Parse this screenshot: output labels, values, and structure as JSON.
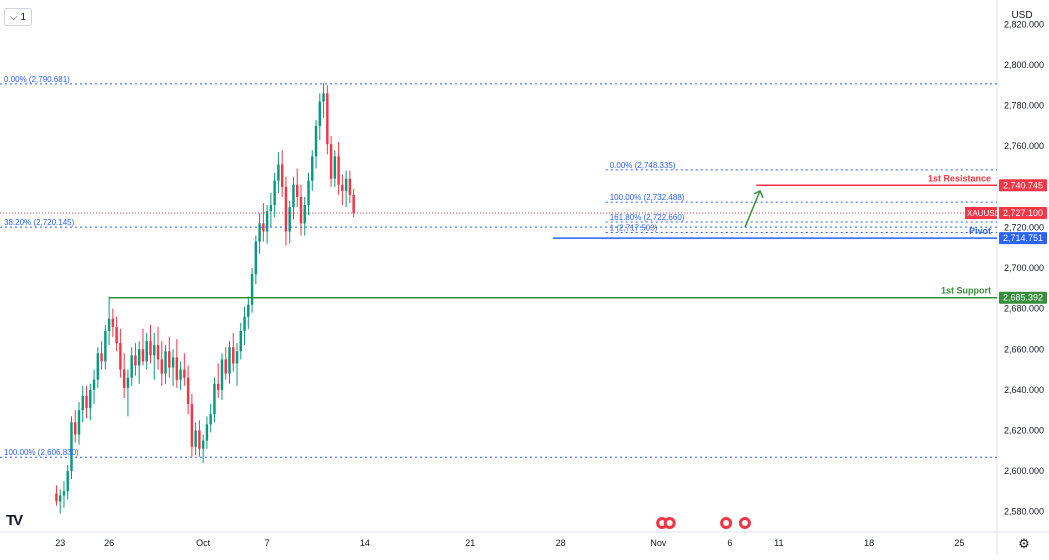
{
  "ui": {
    "menu_label": "1",
    "menu_icon": "chevron-down-icon",
    "currency_label": "USD",
    "settings_icon": "gear-icon",
    "logo_text": "TV"
  },
  "chart_data": {
    "type": "candlestick",
    "symbol": "XAUUSD",
    "last_price": 2727.1,
    "colors": {
      "up": "#089981",
      "down": "#f23645",
      "resistance": "#f23645",
      "support": "#388e3c",
      "pivot": "#2962ff",
      "fib": "#2962ff",
      "last": "#f23645"
    },
    "ylim": [
      2570,
      2832
    ],
    "y_ticks": [
      2580,
      2600,
      2620,
      2640,
      2660,
      2680,
      2700,
      2720,
      2740,
      2760,
      2780,
      2800,
      2820
    ],
    "y_tick_labels": [
      "2,580.000",
      "2,600.000",
      "2,620.000",
      "2,640.000",
      "2,660.000",
      "2,680.000",
      "2,700.000",
      "2,720.000",
      "2,740.000",
      "2,760.000",
      "2,780.000",
      "2,800.000",
      "2,820.000"
    ],
    "x_ticks": [
      {
        "label": "23",
        "bar": 1
      },
      {
        "label": "26",
        "bar": 14
      },
      {
        "label": "Oct",
        "bar": 39
      },
      {
        "label": "7",
        "bar": 56
      },
      {
        "label": "14",
        "bar": 82
      },
      {
        "label": "21",
        "bar": 110
      },
      {
        "label": "28",
        "bar": 134
      },
      {
        "label": "Nov",
        "bar": 160
      },
      {
        "label": "6",
        "bar": 179
      },
      {
        "label": "11",
        "bar": 192
      },
      {
        "label": "18",
        "bar": 216
      },
      {
        "label": "25",
        "bar": 240
      }
    ],
    "x_bar_range": [
      -15,
      250
    ],
    "candles": [
      [
        2589,
        2593,
        2583,
        2585
      ],
      [
        2585,
        2591,
        2579,
        2588
      ],
      [
        2588,
        2595,
        2582,
        2590
      ],
      [
        2590,
        2603,
        2586,
        2600
      ],
      [
        2600,
        2627,
        2596,
        2624
      ],
      [
        2624,
        2630,
        2614,
        2618
      ],
      [
        2618,
        2634,
        2613,
        2630
      ],
      [
        2630,
        2642,
        2624,
        2637
      ],
      [
        2637,
        2642,
        2626,
        2631
      ],
      [
        2631,
        2643,
        2625,
        2640
      ],
      [
        2640,
        2650,
        2633,
        2645
      ],
      [
        2645,
        2661,
        2641,
        2658
      ],
      [
        2658,
        2664,
        2650,
        2654
      ],
      [
        2654,
        2672,
        2650,
        2669
      ],
      [
        2669,
        2686,
        2662,
        2675
      ],
      [
        2675,
        2680,
        2666,
        2671
      ],
      [
        2671,
        2676,
        2659,
        2663
      ],
      [
        2663,
        2670,
        2646,
        2650
      ],
      [
        2650,
        2658,
        2636,
        2641
      ],
      [
        2641,
        2650,
        2627,
        2646
      ],
      [
        2646,
        2661,
        2642,
        2657
      ],
      [
        2657,
        2663,
        2647,
        2652
      ],
      [
        2652,
        2664,
        2643,
        2660
      ],
      [
        2660,
        2670,
        2652,
        2654
      ],
      [
        2654,
        2668,
        2650,
        2664
      ],
      [
        2664,
        2672,
        2653,
        2657
      ],
      [
        2657,
        2668,
        2645,
        2662
      ],
      [
        2662,
        2671,
        2650,
        2655
      ],
      [
        2655,
        2664,
        2642,
        2648
      ],
      [
        2648,
        2662,
        2643,
        2659
      ],
      [
        2659,
        2666,
        2646,
        2651
      ],
      [
        2651,
        2660,
        2642,
        2656
      ],
      [
        2656,
        2665,
        2641,
        2645
      ],
      [
        2645,
        2654,
        2640,
        2650
      ],
      [
        2650,
        2658,
        2642,
        2646
      ],
      [
        2646,
        2652,
        2628,
        2633
      ],
      [
        2633,
        2638,
        2607,
        2612
      ],
      [
        2612,
        2624,
        2608,
        2620
      ],
      [
        2620,
        2625,
        2607,
        2611
      ],
      [
        2611,
        2618,
        2604,
        2615
      ],
      [
        2615,
        2627,
        2611,
        2623
      ],
      [
        2623,
        2633,
        2619,
        2628
      ],
      [
        2628,
        2646,
        2624,
        2643
      ],
      [
        2643,
        2653,
        2636,
        2640
      ],
      [
        2640,
        2658,
        2635,
        2655
      ],
      [
        2655,
        2661,
        2645,
        2648
      ],
      [
        2648,
        2664,
        2643,
        2661
      ],
      [
        2661,
        2668,
        2649,
        2653
      ],
      [
        2653,
        2663,
        2642,
        2659
      ],
      [
        2659,
        2673,
        2655,
        2669
      ],
      [
        2669,
        2681,
        2662,
        2676
      ],
      [
        2676,
        2686,
        2670,
        2682
      ],
      [
        2682,
        2700,
        2678,
        2697
      ],
      [
        2697,
        2716,
        2692,
        2713
      ],
      [
        2713,
        2727,
        2707,
        2722
      ],
      [
        2722,
        2732,
        2713,
        2718
      ],
      [
        2718,
        2731,
        2712,
        2728
      ],
      [
        2728,
        2737,
        2720,
        2731
      ],
      [
        2731,
        2747,
        2725,
        2743
      ],
      [
        2743,
        2757,
        2737,
        2751
      ],
      [
        2751,
        2758,
        2735,
        2740
      ],
      [
        2740,
        2745,
        2711,
        2718
      ],
      [
        2718,
        2733,
        2712,
        2730
      ],
      [
        2730,
        2745,
        2724,
        2741
      ],
      [
        2741,
        2749,
        2730,
        2735
      ],
      [
        2735,
        2741,
        2716,
        2722
      ],
      [
        2722,
        2735,
        2716,
        2731
      ],
      [
        2731,
        2747,
        2726,
        2743
      ],
      [
        2743,
        2758,
        2738,
        2755
      ],
      [
        2755,
        2773,
        2749,
        2770
      ],
      [
        2770,
        2786,
        2763,
        2782
      ],
      [
        2782,
        2791,
        2774,
        2786
      ],
      [
        2786,
        2790,
        2756,
        2761
      ],
      [
        2761,
        2765,
        2740,
        2744
      ],
      [
        2744,
        2758,
        2740,
        2755
      ],
      [
        2755,
        2762,
        2736,
        2741
      ],
      [
        2741,
        2746,
        2731,
        2738
      ],
      [
        2738,
        2748,
        2730,
        2744
      ],
      [
        2744,
        2748,
        2732,
        2736
      ],
      [
        2736,
        2739,
        2725,
        2727
      ]
    ],
    "levels": [
      {
        "name": "1st Resistance",
        "price": 2740.745,
        "label": "2,740.745",
        "color": "#f23645",
        "bar_start": 186,
        "kind": "resistance"
      },
      {
        "name": "XAUUSD",
        "price": 2727.1,
        "label": "2,727.100",
        "color": "#f23645",
        "bar_start": -15,
        "kind": "last"
      },
      {
        "name": "Pivot",
        "price": 2714.751,
        "label": "2,714.751",
        "color": "#2962ff",
        "bar_start": 132,
        "kind": "pivot"
      },
      {
        "name": "1st Support",
        "price": 2685.392,
        "label": "2,685.392",
        "color": "#388e3c",
        "bar_start": 14,
        "kind": "support"
      }
    ],
    "fib_lines": [
      {
        "text": "0.00% (2,790.681)",
        "price": 2790.681,
        "bar_start": -15
      },
      {
        "text": "38.20% (2,720.145)",
        "price": 2720.145,
        "bar_start": -15
      },
      {
        "text": "100.00% (2,606.830)",
        "price": 2606.83,
        "bar_start": -15
      },
      {
        "text": "0.00% (2,748.335)",
        "price": 2748.335,
        "bar_start": 146
      },
      {
        "text": "100.00% (2,732.488)",
        "price": 2732.488,
        "bar_start": 146
      },
      {
        "text": "161.80% (2,722.660)",
        "price": 2722.66,
        "bar_start": 146
      },
      {
        "text": "1 (2,717.503)",
        "price": 2717.503,
        "bar_start": 146
      }
    ],
    "events_icon": "us-flag-event-icon",
    "event_bars": [
      161,
      163,
      178,
      183
    ],
    "arrow_icon": "up-arrow-icon"
  }
}
